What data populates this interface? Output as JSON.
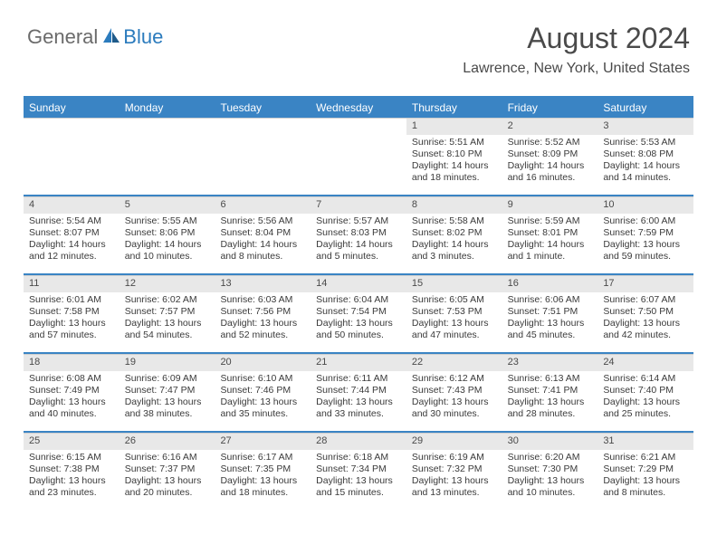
{
  "logo": {
    "part1": "General",
    "part2": "Blue"
  },
  "title": "August 2024",
  "location": "Lawrence, New York, United States",
  "colors": {
    "accent": "#3a84c4",
    "header_bg": "#3a84c4",
    "header_text": "#ffffff",
    "daynum_bg": "#e8e8e8",
    "text": "#3a3a3a",
    "logo_gray": "#6b6b6b",
    "logo_blue": "#2b7bbd"
  },
  "days_of_week": [
    "Sunday",
    "Monday",
    "Tuesday",
    "Wednesday",
    "Thursday",
    "Friday",
    "Saturday"
  ],
  "weeks": [
    [
      {
        "n": "",
        "sunrise": "",
        "sunset": "",
        "daylight": ""
      },
      {
        "n": "",
        "sunrise": "",
        "sunset": "",
        "daylight": ""
      },
      {
        "n": "",
        "sunrise": "",
        "sunset": "",
        "daylight": ""
      },
      {
        "n": "",
        "sunrise": "",
        "sunset": "",
        "daylight": ""
      },
      {
        "n": "1",
        "sunrise": "Sunrise: 5:51 AM",
        "sunset": "Sunset: 8:10 PM",
        "daylight": "Daylight: 14 hours and 18 minutes."
      },
      {
        "n": "2",
        "sunrise": "Sunrise: 5:52 AM",
        "sunset": "Sunset: 8:09 PM",
        "daylight": "Daylight: 14 hours and 16 minutes."
      },
      {
        "n": "3",
        "sunrise": "Sunrise: 5:53 AM",
        "sunset": "Sunset: 8:08 PM",
        "daylight": "Daylight: 14 hours and 14 minutes."
      }
    ],
    [
      {
        "n": "4",
        "sunrise": "Sunrise: 5:54 AM",
        "sunset": "Sunset: 8:07 PM",
        "daylight": "Daylight: 14 hours and 12 minutes."
      },
      {
        "n": "5",
        "sunrise": "Sunrise: 5:55 AM",
        "sunset": "Sunset: 8:06 PM",
        "daylight": "Daylight: 14 hours and 10 minutes."
      },
      {
        "n": "6",
        "sunrise": "Sunrise: 5:56 AM",
        "sunset": "Sunset: 8:04 PM",
        "daylight": "Daylight: 14 hours and 8 minutes."
      },
      {
        "n": "7",
        "sunrise": "Sunrise: 5:57 AM",
        "sunset": "Sunset: 8:03 PM",
        "daylight": "Daylight: 14 hours and 5 minutes."
      },
      {
        "n": "8",
        "sunrise": "Sunrise: 5:58 AM",
        "sunset": "Sunset: 8:02 PM",
        "daylight": "Daylight: 14 hours and 3 minutes."
      },
      {
        "n": "9",
        "sunrise": "Sunrise: 5:59 AM",
        "sunset": "Sunset: 8:01 PM",
        "daylight": "Daylight: 14 hours and 1 minute."
      },
      {
        "n": "10",
        "sunrise": "Sunrise: 6:00 AM",
        "sunset": "Sunset: 7:59 PM",
        "daylight": "Daylight: 13 hours and 59 minutes."
      }
    ],
    [
      {
        "n": "11",
        "sunrise": "Sunrise: 6:01 AM",
        "sunset": "Sunset: 7:58 PM",
        "daylight": "Daylight: 13 hours and 57 minutes."
      },
      {
        "n": "12",
        "sunrise": "Sunrise: 6:02 AM",
        "sunset": "Sunset: 7:57 PM",
        "daylight": "Daylight: 13 hours and 54 minutes."
      },
      {
        "n": "13",
        "sunrise": "Sunrise: 6:03 AM",
        "sunset": "Sunset: 7:56 PM",
        "daylight": "Daylight: 13 hours and 52 minutes."
      },
      {
        "n": "14",
        "sunrise": "Sunrise: 6:04 AM",
        "sunset": "Sunset: 7:54 PM",
        "daylight": "Daylight: 13 hours and 50 minutes."
      },
      {
        "n": "15",
        "sunrise": "Sunrise: 6:05 AM",
        "sunset": "Sunset: 7:53 PM",
        "daylight": "Daylight: 13 hours and 47 minutes."
      },
      {
        "n": "16",
        "sunrise": "Sunrise: 6:06 AM",
        "sunset": "Sunset: 7:51 PM",
        "daylight": "Daylight: 13 hours and 45 minutes."
      },
      {
        "n": "17",
        "sunrise": "Sunrise: 6:07 AM",
        "sunset": "Sunset: 7:50 PM",
        "daylight": "Daylight: 13 hours and 42 minutes."
      }
    ],
    [
      {
        "n": "18",
        "sunrise": "Sunrise: 6:08 AM",
        "sunset": "Sunset: 7:49 PM",
        "daylight": "Daylight: 13 hours and 40 minutes."
      },
      {
        "n": "19",
        "sunrise": "Sunrise: 6:09 AM",
        "sunset": "Sunset: 7:47 PM",
        "daylight": "Daylight: 13 hours and 38 minutes."
      },
      {
        "n": "20",
        "sunrise": "Sunrise: 6:10 AM",
        "sunset": "Sunset: 7:46 PM",
        "daylight": "Daylight: 13 hours and 35 minutes."
      },
      {
        "n": "21",
        "sunrise": "Sunrise: 6:11 AM",
        "sunset": "Sunset: 7:44 PM",
        "daylight": "Daylight: 13 hours and 33 minutes."
      },
      {
        "n": "22",
        "sunrise": "Sunrise: 6:12 AM",
        "sunset": "Sunset: 7:43 PM",
        "daylight": "Daylight: 13 hours and 30 minutes."
      },
      {
        "n": "23",
        "sunrise": "Sunrise: 6:13 AM",
        "sunset": "Sunset: 7:41 PM",
        "daylight": "Daylight: 13 hours and 28 minutes."
      },
      {
        "n": "24",
        "sunrise": "Sunrise: 6:14 AM",
        "sunset": "Sunset: 7:40 PM",
        "daylight": "Daylight: 13 hours and 25 minutes."
      }
    ],
    [
      {
        "n": "25",
        "sunrise": "Sunrise: 6:15 AM",
        "sunset": "Sunset: 7:38 PM",
        "daylight": "Daylight: 13 hours and 23 minutes."
      },
      {
        "n": "26",
        "sunrise": "Sunrise: 6:16 AM",
        "sunset": "Sunset: 7:37 PM",
        "daylight": "Daylight: 13 hours and 20 minutes."
      },
      {
        "n": "27",
        "sunrise": "Sunrise: 6:17 AM",
        "sunset": "Sunset: 7:35 PM",
        "daylight": "Daylight: 13 hours and 18 minutes."
      },
      {
        "n": "28",
        "sunrise": "Sunrise: 6:18 AM",
        "sunset": "Sunset: 7:34 PM",
        "daylight": "Daylight: 13 hours and 15 minutes."
      },
      {
        "n": "29",
        "sunrise": "Sunrise: 6:19 AM",
        "sunset": "Sunset: 7:32 PM",
        "daylight": "Daylight: 13 hours and 13 minutes."
      },
      {
        "n": "30",
        "sunrise": "Sunrise: 6:20 AM",
        "sunset": "Sunset: 7:30 PM",
        "daylight": "Daylight: 13 hours and 10 minutes."
      },
      {
        "n": "31",
        "sunrise": "Sunrise: 6:21 AM",
        "sunset": "Sunset: 7:29 PM",
        "daylight": "Daylight: 13 hours and 8 minutes."
      }
    ]
  ]
}
